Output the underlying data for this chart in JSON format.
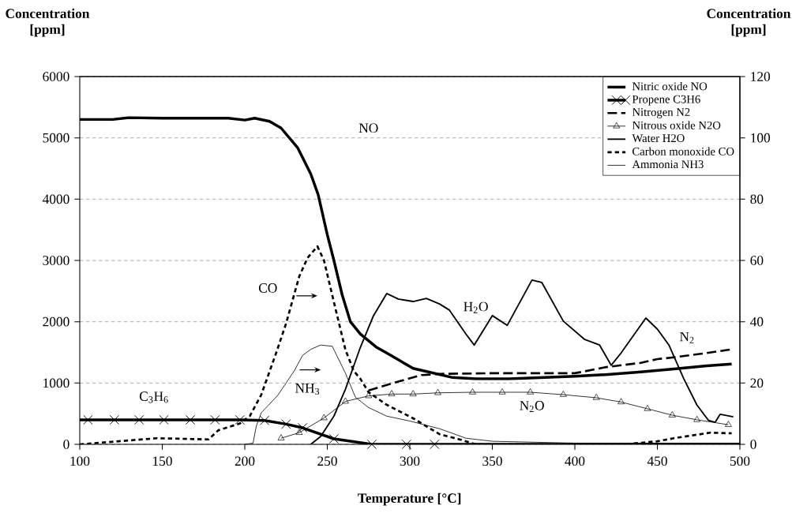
{
  "chart_data": {
    "type": "line",
    "xlabel": "Temperature [°C]",
    "ylabel": "Concentration [ppm]",
    "y2label": "Concentration [ppm]",
    "xlim": [
      100,
      500
    ],
    "xticks": [
      100,
      150,
      200,
      250,
      300,
      350,
      400,
      450,
      500
    ],
    "ylim": [
      0,
      6000
    ],
    "yticks": [
      0,
      1000,
      2000,
      3000,
      4000,
      5000,
      6000
    ],
    "y2lim": [
      0,
      120
    ],
    "y2ticks": [
      0,
      20,
      40,
      60,
      80,
      100,
      120
    ],
    "grid": "y",
    "legend": "top right",
    "series": [
      {
        "name": "Nitric oxide NO",
        "color": "#000000",
        "marker": "none",
        "line_style": "solid",
        "x": [
          100,
          120,
          130,
          150,
          190,
          200,
          206,
          215,
          222,
          232,
          240,
          244.5,
          250,
          254,
          259,
          264,
          270,
          280,
          286,
          302,
          326,
          340,
          360,
          380,
          400,
          420,
          440,
          460,
          480,
          495
        ],
        "values": [
          5300,
          5300,
          5330,
          5320,
          5320,
          5290,
          5320,
          5270,
          5160,
          4840,
          4410,
          4070,
          3420,
          3000,
          2440,
          2000,
          1800,
          1580,
          1490,
          1240,
          1090,
          1070,
          1070,
          1090,
          1110,
          1140,
          1180,
          1230,
          1280,
          1310
        ]
      },
      {
        "name": "Propene C3H6",
        "color": "#000000",
        "marker": "cross",
        "line_style": "solid",
        "x": [
          100,
          105,
          121,
          136,
          151,
          167,
          182,
          197,
          212,
          225,
          235,
          254,
          277,
          298,
          315,
          500
        ],
        "values": [
          400,
          400,
          400,
          400,
          400,
          400,
          400,
          400,
          390,
          330,
          270,
          90,
          0,
          0,
          0,
          0
        ]
      },
      {
        "name": "Nitrogen N2",
        "color": "#000000",
        "marker": "none",
        "line_style": "dashed",
        "x": [
          275,
          290,
          307,
          320,
          350,
          400,
          419,
          440,
          450,
          460,
          480,
          495
        ],
        "values": [
          880,
          1000,
          1130,
          1150,
          1160,
          1160,
          1260,
          1330,
          1390,
          1420,
          1490,
          1550
        ]
      },
      {
        "name": "Nitrous oxide N2O",
        "color": "#000000",
        "marker": "triangle",
        "line_style": "solid",
        "x": [
          222,
          233,
          248,
          261,
          275,
          289,
          302,
          317,
          338,
          356,
          373,
          393,
          413,
          428,
          444,
          459,
          474,
          493
        ],
        "values": [
          100,
          190,
          430,
          700,
          790,
          820,
          820,
          840,
          850,
          850,
          850,
          810,
          760,
          690,
          580,
          475,
          400,
          320
        ]
      },
      {
        "name": "Water H2O",
        "color": "#000000",
        "marker": "none",
        "line_style": "solid",
        "x": [
          240,
          246,
          254,
          261,
          270,
          278,
          286,
          293,
          302,
          310,
          318,
          324,
          334,
          339,
          350,
          359,
          374,
          380,
          393,
          406,
          415,
          422,
          428,
          443,
          450,
          457,
          466,
          474,
          481,
          485,
          488,
          496
        ],
        "values": [
          0,
          130,
          460,
          900,
          1580,
          2100,
          2460,
          2370,
          2330,
          2380,
          2290,
          2190,
          1800,
          1620,
          2100,
          1940,
          2680,
          2640,
          2010,
          1710,
          1620,
          1290,
          1490,
          2060,
          1880,
          1620,
          1070,
          640,
          390,
          360,
          490,
          450
        ]
      },
      {
        "name": "Carbon monoxide CO",
        "color": "#000000",
        "marker": "none",
        "line_style": "dotted",
        "axis": "y2",
        "x": [
          100,
          147,
          178,
          184,
          197,
          203,
          210,
          219,
          225,
          233,
          238,
          244,
          248,
          254,
          261,
          266,
          270,
          275,
          286,
          302,
          318,
          331,
          340,
          430,
          450,
          460,
          482,
          495
        ],
        "values": [
          0,
          2,
          1.6,
          4.6,
          6.8,
          9.2,
          16.2,
          29.8,
          39.4,
          54.8,
          60.8,
          64.6,
          60,
          46.4,
          30.8,
          24,
          21.4,
          17,
          12.9,
          8.5,
          3.3,
          1.5,
          0,
          0,
          1,
          2,
          3.8,
          3.6
        ]
      },
      {
        "name": "Ammonia NH3",
        "color": "#000000",
        "marker": "none",
        "line_style": "solid",
        "axis": "y2",
        "x": [
          200,
          205,
          207,
          210,
          220,
          230,
          235,
          240,
          246,
          253,
          261,
          267,
          275,
          286,
          300,
          318,
          334,
          350,
          400,
          500
        ],
        "values": [
          0,
          0.4,
          6,
          10.3,
          16,
          24,
          29,
          31,
          32.4,
          32,
          23.2,
          15.4,
          12,
          9.2,
          7.6,
          5.1,
          2,
          1,
          0.4,
          0.4
        ]
      }
    ],
    "annotations": [
      "NO",
      "CO",
      "NH$_{3}$",
      "C$_{3}$H$_{6}$",
      "H$_{2}$O",
      "N$_{2}$",
      "N$_{2}$O"
    ]
  }
}
